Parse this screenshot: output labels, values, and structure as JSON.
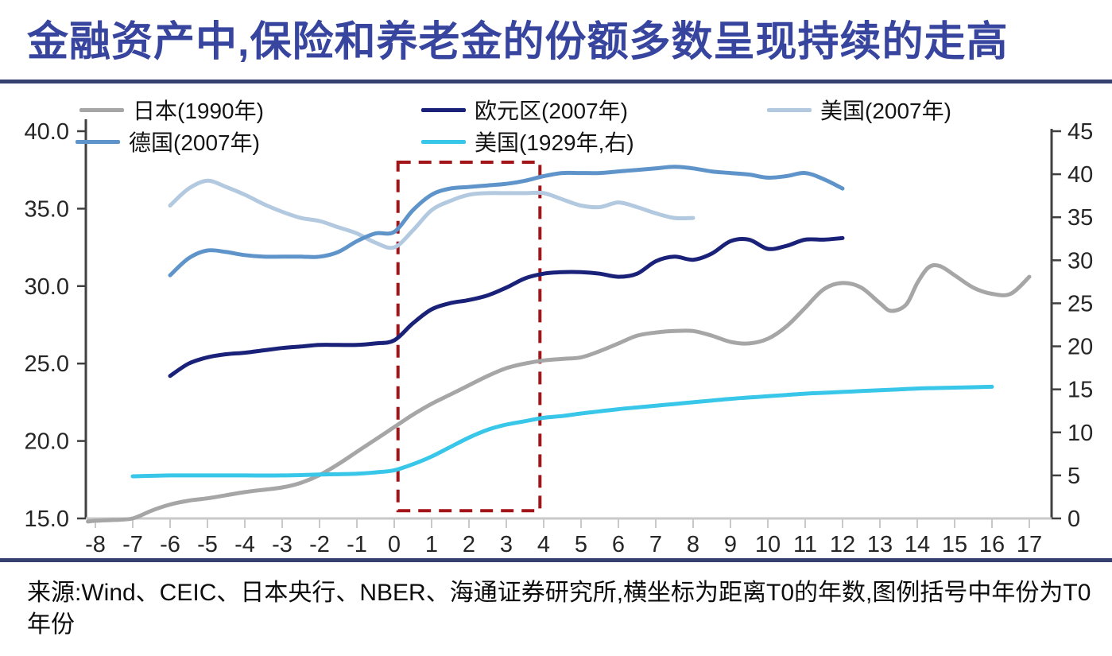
{
  "title": "金融资产中,保险和养老金的份额多数呈现持续的走高",
  "source_note": "来源:Wind、CEIC、日本央行、NBER、海通证券研究所,横坐标为距离T0的年数,图例括号中年份为T0年份",
  "colors": {
    "title": "#37459E",
    "separator": "#35406F",
    "axis_dark": "#404040",
    "axis_light": "#C9C9C9",
    "tick_label": "#262626",
    "annotation_red": "#A31418"
  },
  "chart_data": {
    "type": "line",
    "grid": false,
    "legend_position": "top",
    "x_axis": {
      "min": -8,
      "max": 17,
      "ticks": [
        -8,
        -7,
        -6,
        -5,
        -4,
        -3,
        -2,
        -1,
        0,
        1,
        2,
        3,
        4,
        5,
        6,
        7,
        8,
        9,
        10,
        11,
        12,
        13,
        14,
        15,
        16,
        17
      ]
    },
    "y_axis_left": {
      "min": 15,
      "max": 40,
      "ticks": [
        {
          "value": 15,
          "label": "15.0"
        },
        {
          "value": 20,
          "label": "20.0"
        },
        {
          "value": 25,
          "label": "25.0"
        },
        {
          "value": 30,
          "label": "30.0"
        },
        {
          "value": 35,
          "label": "35.0"
        },
        {
          "value": 40,
          "label": "40.0"
        }
      ]
    },
    "y_axis_right": {
      "min": 0,
      "max": 45,
      "ticks": [
        {
          "value": 0,
          "label": "0"
        },
        {
          "value": 5,
          "label": "5"
        },
        {
          "value": 10,
          "label": "10"
        },
        {
          "value": 15,
          "label": "15"
        },
        {
          "value": 20,
          "label": "20"
        },
        {
          "value": 25,
          "label": "25"
        },
        {
          "value": 30,
          "label": "30"
        },
        {
          "value": 35,
          "label": "35"
        },
        {
          "value": 40,
          "label": "40"
        },
        {
          "value": 45,
          "label": "45"
        }
      ]
    },
    "annotation_box": {
      "axis": "left",
      "style": "dashed",
      "color": "#A31418",
      "x0": 0.1,
      "x1": 3.9,
      "y0": 15.5,
      "y1": 38.0
    },
    "series": [
      {
        "id": "japan-1990",
        "name": "日本(1990年)",
        "color": "#A6A6A6",
        "axis": "left",
        "points": [
          [
            -8.2,
            14.8
          ],
          [
            -8,
            14.85
          ],
          [
            -7.5,
            14.9
          ],
          [
            -7,
            15.0
          ],
          [
            -6.5,
            15.5
          ],
          [
            -6,
            15.9
          ],
          [
            -5.5,
            16.15
          ],
          [
            -5,
            16.3
          ],
          [
            -4.5,
            16.5
          ],
          [
            -4,
            16.7
          ],
          [
            -3.5,
            16.85
          ],
          [
            -3,
            17.0
          ],
          [
            -2.5,
            17.3
          ],
          [
            -2,
            17.8
          ],
          [
            -1.5,
            18.5
          ],
          [
            -1,
            19.3
          ],
          [
            -0.5,
            20.1
          ],
          [
            0,
            20.9
          ],
          [
            0.5,
            21.7
          ],
          [
            1,
            22.4
          ],
          [
            1.5,
            23.0
          ],
          [
            2,
            23.6
          ],
          [
            2.5,
            24.2
          ],
          [
            3,
            24.7
          ],
          [
            3.5,
            25.0
          ],
          [
            4,
            25.2
          ],
          [
            4.5,
            25.3
          ],
          [
            5,
            25.4
          ],
          [
            5.5,
            25.8
          ],
          [
            6,
            26.3
          ],
          [
            6.5,
            26.8
          ],
          [
            7,
            27.0
          ],
          [
            7.5,
            27.1
          ],
          [
            8,
            27.1
          ],
          [
            8.5,
            26.8
          ],
          [
            9,
            26.4
          ],
          [
            9.5,
            26.3
          ],
          [
            10,
            26.6
          ],
          [
            10.5,
            27.4
          ],
          [
            11,
            28.6
          ],
          [
            11.5,
            29.8
          ],
          [
            12,
            30.2
          ],
          [
            12.5,
            29.9
          ],
          [
            13,
            28.9
          ],
          [
            13.3,
            28.4
          ],
          [
            13.7,
            28.8
          ],
          [
            14,
            30.2
          ],
          [
            14.3,
            31.2
          ],
          [
            14.6,
            31.3
          ],
          [
            15,
            30.7
          ],
          [
            15.5,
            29.9
          ],
          [
            16,
            29.5
          ],
          [
            16.5,
            29.5
          ],
          [
            17,
            30.6
          ]
        ]
      },
      {
        "id": "eurozone-2007",
        "name": "欧元区(2007年)",
        "color": "#1A2178",
        "axis": "left",
        "points": [
          [
            -6,
            24.2
          ],
          [
            -5.5,
            25.0
          ],
          [
            -5,
            25.4
          ],
          [
            -4.5,
            25.6
          ],
          [
            -4,
            25.7
          ],
          [
            -3.5,
            25.85
          ],
          [
            -3,
            26.0
          ],
          [
            -2.5,
            26.1
          ],
          [
            -2,
            26.2
          ],
          [
            -1.5,
            26.2
          ],
          [
            -1,
            26.2
          ],
          [
            -0.5,
            26.3
          ],
          [
            0,
            26.5
          ],
          [
            0.5,
            27.6
          ],
          [
            1,
            28.5
          ],
          [
            1.5,
            28.9
          ],
          [
            2,
            29.1
          ],
          [
            2.5,
            29.4
          ],
          [
            3,
            29.9
          ],
          [
            3.5,
            30.5
          ],
          [
            4,
            30.8
          ],
          [
            4.5,
            30.9
          ],
          [
            5,
            30.9
          ],
          [
            5.5,
            30.8
          ],
          [
            6,
            30.6
          ],
          [
            6.5,
            30.8
          ],
          [
            7,
            31.6
          ],
          [
            7.5,
            31.9
          ],
          [
            8,
            31.7
          ],
          [
            8.5,
            32.1
          ],
          [
            9,
            32.9
          ],
          [
            9.5,
            33.0
          ],
          [
            10,
            32.4
          ],
          [
            10.5,
            32.6
          ],
          [
            11,
            33.0
          ],
          [
            11.5,
            33.0
          ],
          [
            12,
            33.1
          ]
        ]
      },
      {
        "id": "us-2007",
        "name": "美国(2007年)",
        "color": "#B3C9E0",
        "axis": "left",
        "points": [
          [
            -6,
            35.2
          ],
          [
            -5.5,
            36.3
          ],
          [
            -5,
            36.8
          ],
          [
            -4.5,
            36.4
          ],
          [
            -4,
            35.9
          ],
          [
            -3.5,
            35.3
          ],
          [
            -3,
            34.8
          ],
          [
            -2.5,
            34.4
          ],
          [
            -2,
            34.2
          ],
          [
            -1.5,
            33.8
          ],
          [
            -1,
            33.4
          ],
          [
            -0.5,
            32.8
          ],
          [
            0,
            32.5
          ],
          [
            0.5,
            33.6
          ],
          [
            1,
            34.9
          ],
          [
            1.5,
            35.5
          ],
          [
            2,
            35.9
          ],
          [
            2.5,
            36.0
          ],
          [
            3,
            36.0
          ],
          [
            3.5,
            36.0
          ],
          [
            4,
            36.0
          ],
          [
            4.5,
            35.6
          ],
          [
            5,
            35.2
          ],
          [
            5.5,
            35.1
          ],
          [
            6,
            35.4
          ],
          [
            6.5,
            35.1
          ],
          [
            7,
            34.7
          ],
          [
            7.5,
            34.4
          ],
          [
            8,
            34.4
          ]
        ]
      },
      {
        "id": "germany-2007",
        "name": "德国(2007年)",
        "color": "#5E94C9",
        "axis": "left",
        "points": [
          [
            -6,
            30.7
          ],
          [
            -5.5,
            31.8
          ],
          [
            -5,
            32.3
          ],
          [
            -4.5,
            32.2
          ],
          [
            -4,
            32.0
          ],
          [
            -3.5,
            31.9
          ],
          [
            -3,
            31.9
          ],
          [
            -2.5,
            31.9
          ],
          [
            -2,
            31.9
          ],
          [
            -1.5,
            32.2
          ],
          [
            -1,
            32.9
          ],
          [
            -0.5,
            33.4
          ],
          [
            0,
            33.5
          ],
          [
            0.5,
            34.9
          ],
          [
            1,
            35.9
          ],
          [
            1.5,
            36.3
          ],
          [
            2,
            36.4
          ],
          [
            2.5,
            36.5
          ],
          [
            3,
            36.6
          ],
          [
            3.5,
            36.8
          ],
          [
            4,
            37.1
          ],
          [
            4.5,
            37.3
          ],
          [
            5,
            37.3
          ],
          [
            5.5,
            37.3
          ],
          [
            6,
            37.4
          ],
          [
            6.5,
            37.5
          ],
          [
            7,
            37.6
          ],
          [
            7.5,
            37.7
          ],
          [
            8,
            37.6
          ],
          [
            8.5,
            37.4
          ],
          [
            9,
            37.3
          ],
          [
            9.5,
            37.2
          ],
          [
            10,
            37.0
          ],
          [
            10.5,
            37.1
          ],
          [
            11,
            37.3
          ],
          [
            11.5,
            36.9
          ],
          [
            12,
            36.3
          ]
        ]
      },
      {
        "id": "us-1929",
        "name": "美国(1929年,右)",
        "color": "#38C6E9",
        "axis": "right",
        "points": [
          [
            -7,
            4.9
          ],
          [
            -6,
            5.0
          ],
          [
            -5,
            5.0
          ],
          [
            -4,
            5.0
          ],
          [
            -3,
            5.0
          ],
          [
            -2,
            5.1
          ],
          [
            -1,
            5.2
          ],
          [
            -0.5,
            5.35
          ],
          [
            0,
            5.6
          ],
          [
            0.5,
            6.3
          ],
          [
            1,
            7.2
          ],
          [
            1.5,
            8.3
          ],
          [
            2,
            9.4
          ],
          [
            2.5,
            10.3
          ],
          [
            3,
            10.9
          ],
          [
            3.5,
            11.3
          ],
          [
            4,
            11.7
          ],
          [
            4.5,
            11.9
          ],
          [
            5,
            12.2
          ],
          [
            5.5,
            12.45
          ],
          [
            6,
            12.7
          ],
          [
            6.5,
            12.9
          ],
          [
            7,
            13.1
          ],
          [
            7.5,
            13.3
          ],
          [
            8,
            13.5
          ],
          [
            8.5,
            13.7
          ],
          [
            9,
            13.9
          ],
          [
            9.5,
            14.05
          ],
          [
            10,
            14.2
          ],
          [
            10.5,
            14.35
          ],
          [
            11,
            14.5
          ],
          [
            11.5,
            14.6
          ],
          [
            12,
            14.7
          ],
          [
            12.5,
            14.8
          ],
          [
            13,
            14.9
          ],
          [
            13.5,
            15.0
          ],
          [
            14,
            15.1
          ],
          [
            14.5,
            15.15
          ],
          [
            15,
            15.2
          ],
          [
            15.5,
            15.25
          ],
          [
            16,
            15.3
          ]
        ]
      }
    ],
    "legend": {
      "order": [
        0,
        1,
        2,
        3,
        4
      ]
    }
  }
}
